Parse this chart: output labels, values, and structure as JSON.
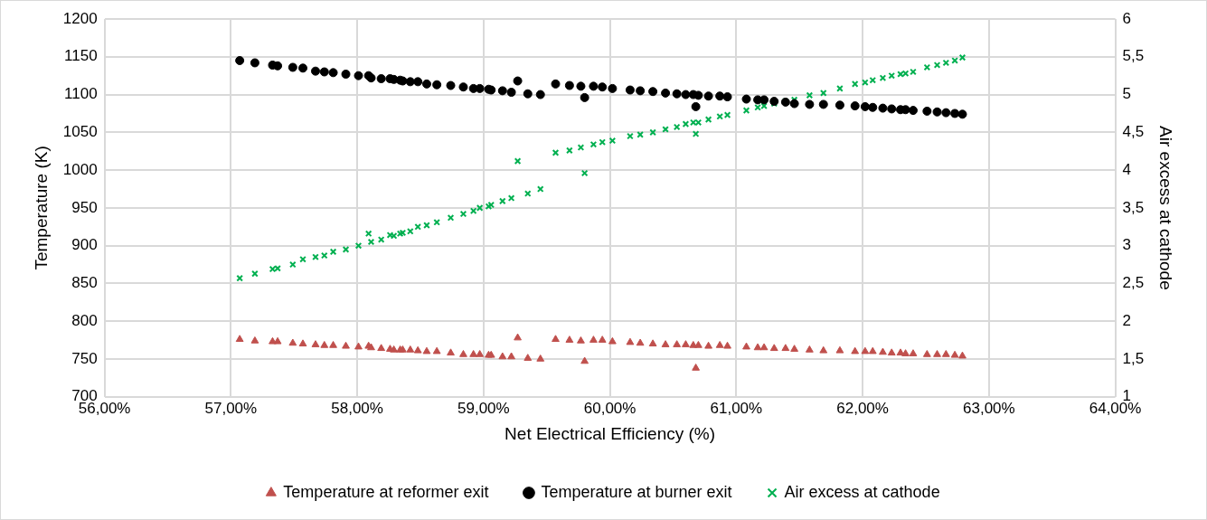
{
  "chart_data": {
    "type": "scatter",
    "xlabel": "Net Electrical Efficiency (%)",
    "ylabel": "Temperature (K)",
    "y2label": "Air excess at cathode",
    "x": [
      57.07,
      57.19,
      57.33,
      57.37,
      57.49,
      57.57,
      57.67,
      57.74,
      57.81,
      57.91,
      58.01,
      58.09,
      58.11,
      58.19,
      58.26,
      58.29,
      58.34,
      58.36,
      58.42,
      58.48,
      58.55,
      58.63,
      58.74,
      58.84,
      58.92,
      58.97,
      59.04,
      59.06,
      59.15,
      59.22,
      59.27,
      59.35,
      59.45,
      59.57,
      59.68,
      59.77,
      59.8,
      59.87,
      59.94,
      60.02,
      60.16,
      60.24,
      60.34,
      60.44,
      60.53,
      60.6,
      60.66,
      60.68,
      60.7,
      60.78,
      60.87,
      60.93,
      61.08,
      61.17,
      61.22,
      61.3,
      61.39,
      61.46,
      61.58,
      61.69,
      61.82,
      61.94,
      62.02,
      62.08,
      62.16,
      62.23,
      62.3,
      62.34,
      62.4,
      62.51,
      62.59,
      62.66,
      62.73,
      62.79
    ],
    "series": [
      {
        "name": "Temperature at reformer exit",
        "color": "#c0504d",
        "marker": "triangle",
        "values": [
          776,
          774,
          773,
          773,
          771,
          770,
          769,
          768,
          768,
          767,
          766,
          767,
          765,
          764,
          763,
          762,
          762,
          762,
          762,
          761,
          760,
          760,
          758,
          756,
          756,
          756,
          755,
          755,
          753,
          753,
          778,
          751,
          750,
          776,
          775,
          774,
          747,
          775,
          775,
          773,
          772,
          771,
          770,
          769,
          769,
          769,
          768,
          738,
          768,
          767,
          768,
          767,
          766,
          765,
          765,
          764,
          764,
          763,
          762,
          761,
          761,
          760,
          760,
          760,
          759,
          758,
          758,
          757,
          757,
          756,
          756,
          756,
          755,
          754
        ]
      },
      {
        "name": "Temperature at burner exit",
        "color": "#000000",
        "marker": "circle",
        "values": [
          1145,
          1142,
          1139,
          1138,
          1136,
          1135,
          1131,
          1130,
          1129,
          1127,
          1125,
          1125,
          1122,
          1121,
          1121,
          1120,
          1119,
          1118,
          1117,
          1117,
          1114,
          1113,
          1112,
          1110,
          1108,
          1108,
          1107,
          1106,
          1105,
          1103,
          1118,
          1101,
          1100,
          1114,
          1112,
          1111,
          1096,
          1111,
          1110,
          1108,
          1106,
          1105,
          1104,
          1102,
          1101,
          1100,
          1100,
          1084,
          1099,
          1098,
          1098,
          1097,
          1094,
          1093,
          1093,
          1091,
          1090,
          1088,
          1087,
          1087,
          1086,
          1085,
          1084,
          1083,
          1082,
          1081,
          1080,
          1080,
          1079,
          1078,
          1077,
          1076,
          1075,
          1074
        ]
      },
      {
        "name": "Air excess at cathode",
        "color": "#00b050",
        "marker": "cross",
        "axis": "y2",
        "values": [
          2.57,
          2.63,
          2.69,
          2.7,
          2.75,
          2.82,
          2.85,
          2.87,
          2.92,
          2.95,
          3.0,
          3.16,
          3.05,
          3.08,
          3.14,
          3.13,
          3.16,
          3.17,
          3.19,
          3.25,
          3.27,
          3.31,
          3.37,
          3.42,
          3.46,
          3.5,
          3.52,
          3.54,
          3.59,
          3.63,
          4.12,
          3.69,
          3.75,
          4.23,
          4.26,
          4.3,
          3.96,
          4.34,
          4.37,
          4.39,
          4.45,
          4.47,
          4.5,
          4.54,
          4.57,
          4.61,
          4.63,
          4.48,
          4.63,
          4.67,
          4.71,
          4.73,
          4.79,
          4.83,
          4.85,
          4.88,
          4.91,
          4.93,
          4.99,
          5.02,
          5.08,
          5.14,
          5.16,
          5.19,
          5.22,
          5.25,
          5.27,
          5.28,
          5.3,
          5.36,
          5.39,
          5.42,
          5.45,
          5.49
        ]
      }
    ],
    "xlim": [
      56,
      64
    ],
    "xticks": [
      {
        "value": 56,
        "label": "56,00%"
      },
      {
        "value": 57,
        "label": "57,00%"
      },
      {
        "value": 58,
        "label": "58,00%"
      },
      {
        "value": 59,
        "label": "59,00%"
      },
      {
        "value": 60,
        "label": "60,00%"
      },
      {
        "value": 61,
        "label": "61,00%"
      },
      {
        "value": 62,
        "label": "62,00%"
      },
      {
        "value": 63,
        "label": "63,00%"
      },
      {
        "value": 64,
        "label": "64,00%"
      }
    ],
    "ylim": [
      700,
      1200
    ],
    "yticks": [
      700,
      750,
      800,
      850,
      900,
      950,
      1000,
      1050,
      1100,
      1150,
      1200
    ],
    "y2lim": [
      1,
      6
    ],
    "y2ticks": [
      1,
      {
        "value": 1.5,
        "label": "1,5"
      },
      2,
      {
        "value": 2.5,
        "label": "2,5"
      },
      3,
      {
        "value": 3.5,
        "label": "3,5"
      },
      4,
      {
        "value": 4.5,
        "label": "4,5"
      },
      5,
      {
        "value": 5.5,
        "label": "5,5"
      },
      6
    ],
    "grid": true,
    "legend": "bottom"
  }
}
